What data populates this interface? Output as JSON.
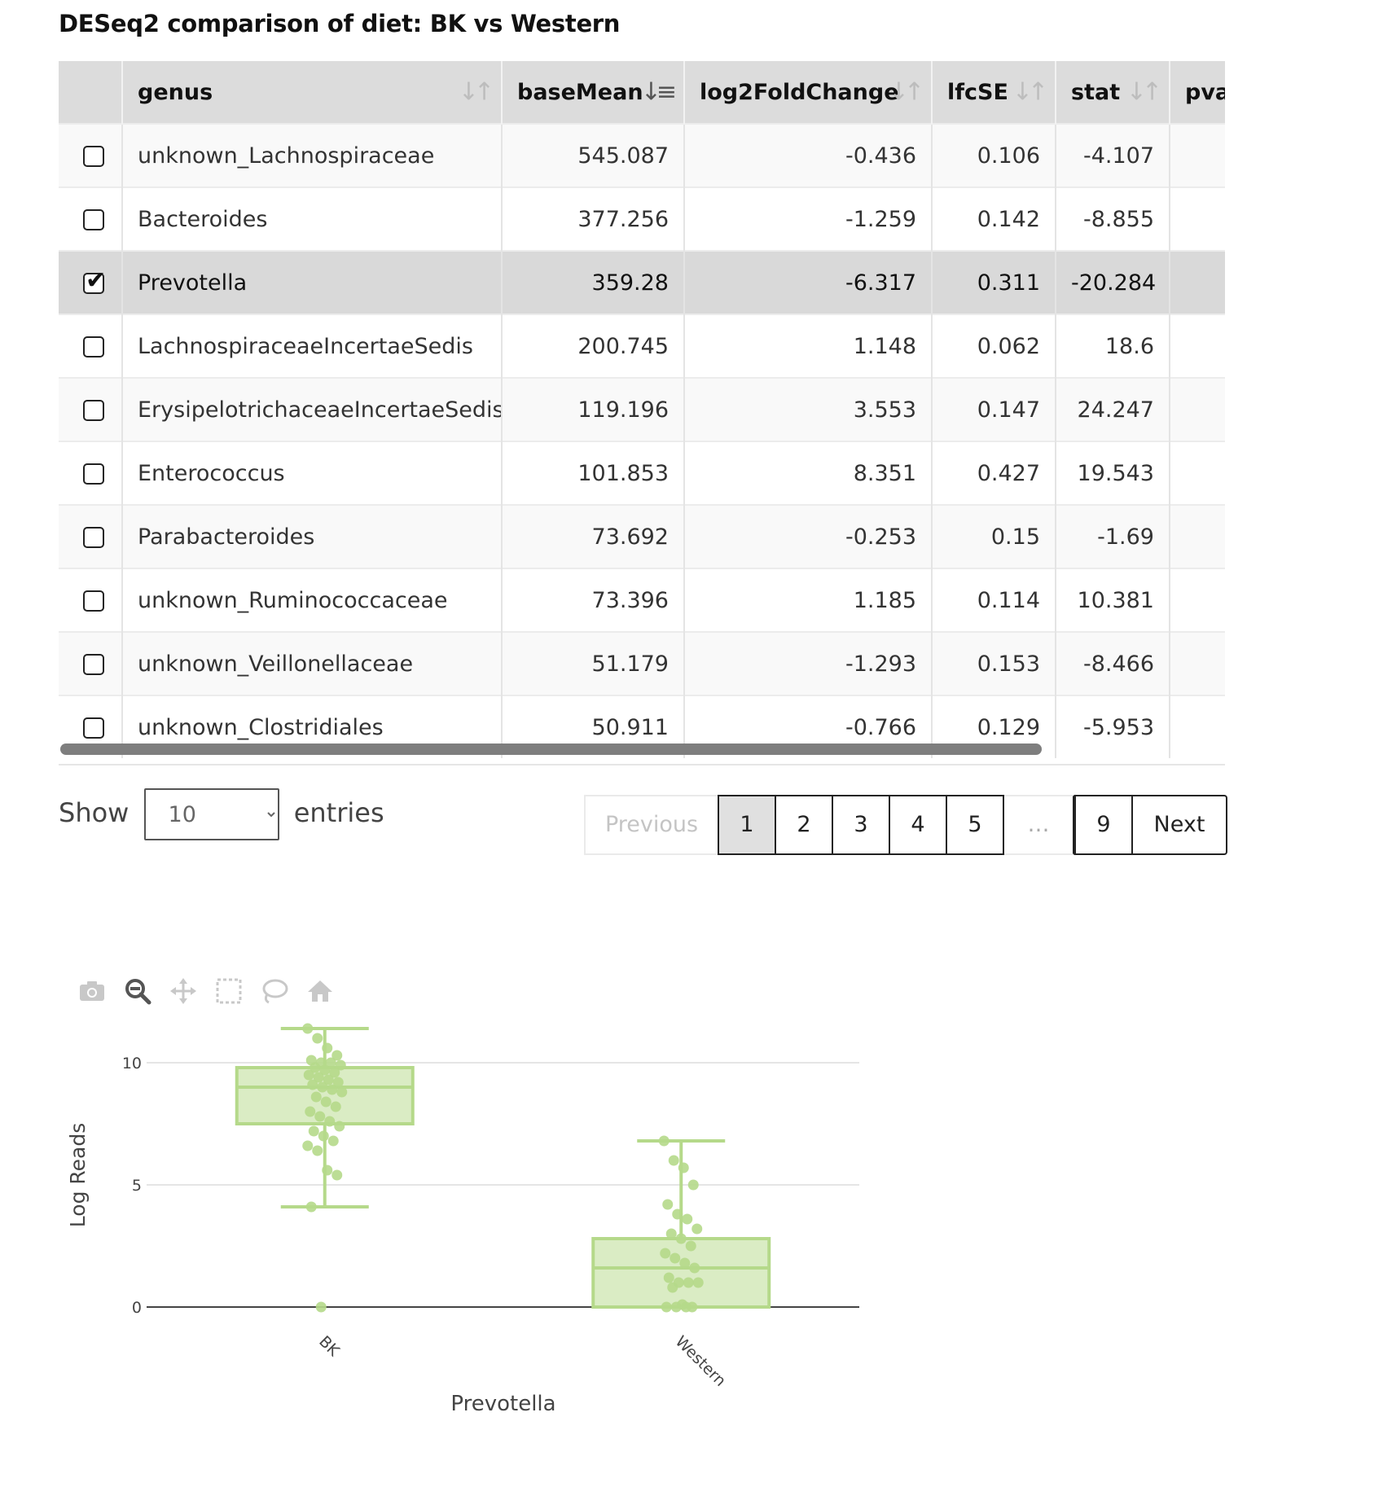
{
  "title": "DESeq2 comparison of diet: BK vs Western",
  "table": {
    "columns": [
      "",
      "genus",
      "baseMean",
      "log2FoldChange",
      "lfcSE",
      "stat",
      "pva"
    ],
    "rows": [
      {
        "checked": false,
        "genus": "unknown_Lachnospiraceae",
        "baseMean": "545.087",
        "log2FoldChange": "-0.436",
        "lfcSE": "0.106",
        "stat": "-4.107"
      },
      {
        "checked": false,
        "genus": "Bacteroides",
        "baseMean": "377.256",
        "log2FoldChange": "-1.259",
        "lfcSE": "0.142",
        "stat": "-8.855"
      },
      {
        "checked": true,
        "genus": "Prevotella",
        "baseMean": "359.28",
        "log2FoldChange": "-6.317",
        "lfcSE": "0.311",
        "stat": "-20.284"
      },
      {
        "checked": false,
        "genus": "LachnospiraceaeIncertaeSedis",
        "baseMean": "200.745",
        "log2FoldChange": "1.148",
        "lfcSE": "0.062",
        "stat": "18.6"
      },
      {
        "checked": false,
        "genus": "ErysipelotrichaceaeIncertaeSedis",
        "baseMean": "119.196",
        "log2FoldChange": "3.553",
        "lfcSE": "0.147",
        "stat": "24.247"
      },
      {
        "checked": false,
        "genus": "Enterococcus",
        "baseMean": "101.853",
        "log2FoldChange": "8.351",
        "lfcSE": "0.427",
        "stat": "19.543"
      },
      {
        "checked": false,
        "genus": "Parabacteroides",
        "baseMean": "73.692",
        "log2FoldChange": "-0.253",
        "lfcSE": "0.15",
        "stat": "-1.69"
      },
      {
        "checked": false,
        "genus": "unknown_Ruminococcaceae",
        "baseMean": "73.396",
        "log2FoldChange": "1.185",
        "lfcSE": "0.114",
        "stat": "10.381"
      },
      {
        "checked": false,
        "genus": "unknown_Veillonellaceae",
        "baseMean": "51.179",
        "log2FoldChange": "-1.293",
        "lfcSE": "0.153",
        "stat": "-8.466"
      },
      {
        "checked": false,
        "genus": "unknown_Clostridiales",
        "baseMean": "50.911",
        "log2FoldChange": "-0.766",
        "lfcSE": "0.129",
        "stat": "-5.953"
      }
    ]
  },
  "length_menu": {
    "show_label": "Show",
    "selected": "10",
    "entries_label": "entries"
  },
  "pagination": {
    "previous": "Previous",
    "pages": [
      "1",
      "2",
      "3",
      "4",
      "5"
    ],
    "ellipsis": "…",
    "last": "9",
    "next": "Next",
    "current": "1"
  },
  "modebar_icons": [
    "camera-icon",
    "zoom-icon",
    "pan-icon",
    "box-select-icon",
    "lasso-select-icon",
    "home-icon"
  ],
  "chart_data": {
    "type": "box",
    "categories": [
      "BK",
      "Western"
    ],
    "xlabel": "Prevotella",
    "ylabel": "Log Reads",
    "ylim": [
      0,
      11.5
    ],
    "yticks": [
      0,
      5,
      10
    ],
    "color": "#b5d98a",
    "boxes": [
      {
        "name": "BK",
        "min": 4.1,
        "q1": 7.5,
        "median": 9.0,
        "q3": 9.8,
        "max": 11.4,
        "outliers": [
          0.0
        ],
        "points": [
          11.4,
          11.0,
          10.6,
          10.3,
          10.1,
          10.0,
          10.0,
          9.9,
          9.8,
          9.7,
          9.6,
          9.5,
          9.4,
          9.3,
          9.2,
          9.1,
          9.0,
          8.9,
          8.8,
          8.6,
          8.4,
          8.2,
          8.0,
          7.8,
          7.6,
          7.4,
          7.2,
          7.0,
          6.8,
          6.6,
          6.4,
          5.6,
          5.4,
          4.1,
          0.0
        ]
      },
      {
        "name": "Western",
        "min": 0.0,
        "q1": 0.0,
        "median": 1.6,
        "q3": 2.8,
        "max": 6.8,
        "outliers": [],
        "points": [
          6.8,
          6.0,
          5.7,
          5.0,
          4.2,
          3.8,
          3.6,
          3.2,
          3.0,
          2.8,
          2.5,
          2.2,
          2.0,
          1.8,
          1.6,
          1.2,
          1.0,
          1.0,
          1.0,
          0.8,
          0.1,
          0.0,
          0.0,
          0.0,
          0.0
        ]
      }
    ]
  }
}
